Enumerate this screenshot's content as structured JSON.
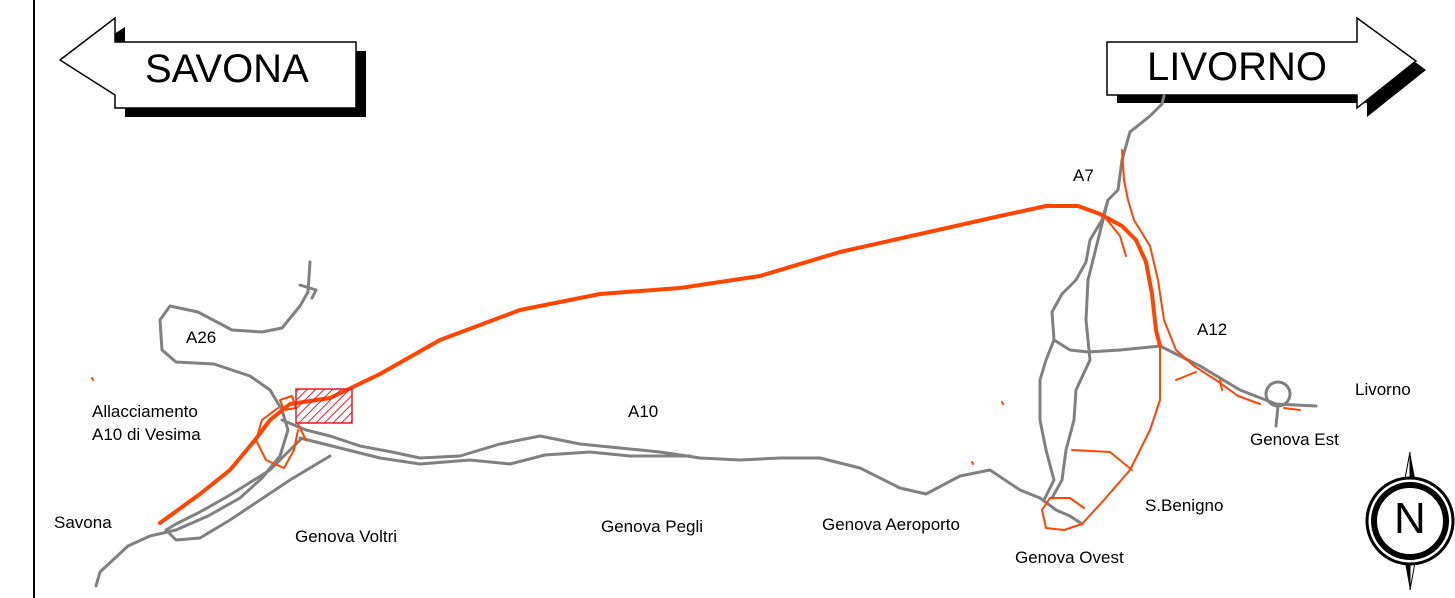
{
  "signs": {
    "west": "SAVONA",
    "east": "LIVORNO"
  },
  "motorways": {
    "a26": "A26",
    "a10": "A10",
    "a7": "A7",
    "a12": "A12"
  },
  "places": {
    "junction_line1": "Allacciamento",
    "junction_line2": "A10 di Vesima",
    "savona": "Savona",
    "voltri": "Genova Voltri",
    "pegli": "Genova Pegli",
    "aeroporto": "Genova Aeroporto",
    "ovest": "Genova Ovest",
    "benigno": "S.Benigno",
    "est": "Genova Est",
    "livorno": "Livorno"
  },
  "compass": {
    "letter": "N",
    "icon": "north-arrow-icon"
  },
  "colors": {
    "existing_road": "#808080",
    "planned_road": "#ff4500",
    "work_area": "#e8192c"
  }
}
